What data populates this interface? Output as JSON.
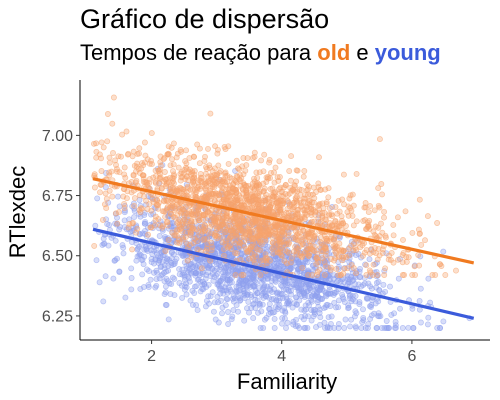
{
  "chart_data": {
    "type": "scatter",
    "title": "Gráfico de dispersão",
    "subtitle": {
      "prefix": "Tempos de reação para ",
      "highlight_1": "old",
      "connector": " e ",
      "highlight_2": "young"
    },
    "xlabel": "Familiarity",
    "ylabel": "RTlexdec",
    "xlim": [
      0.9,
      7.2
    ],
    "ylim": [
      6.15,
      7.23
    ],
    "x_ticks": [
      2,
      4,
      6
    ],
    "y_ticks": [
      6.25,
      6.5,
      6.75,
      7.0
    ],
    "grid": false,
    "series": [
      {
        "name": "old",
        "color": "#f07a20",
        "point_color": "#f7a46c",
        "trend": {
          "x": [
            1.1,
            6.95
          ],
          "y": [
            6.82,
            6.47
          ]
        },
        "x_range": [
          1.1,
          6.95
        ],
        "y_band": [
          6.42,
          7.2
        ],
        "approx_points": 1800
      },
      {
        "name": "young",
        "color": "#3b5bdb",
        "point_color": "#8fa0ef",
        "trend": {
          "x": [
            1.1,
            6.95
          ],
          "y": [
            6.61,
            6.24
          ]
        },
        "x_range": [
          1.1,
          6.95
        ],
        "y_band": [
          6.2,
          6.88
        ],
        "approx_points": 1800
      }
    ]
  }
}
